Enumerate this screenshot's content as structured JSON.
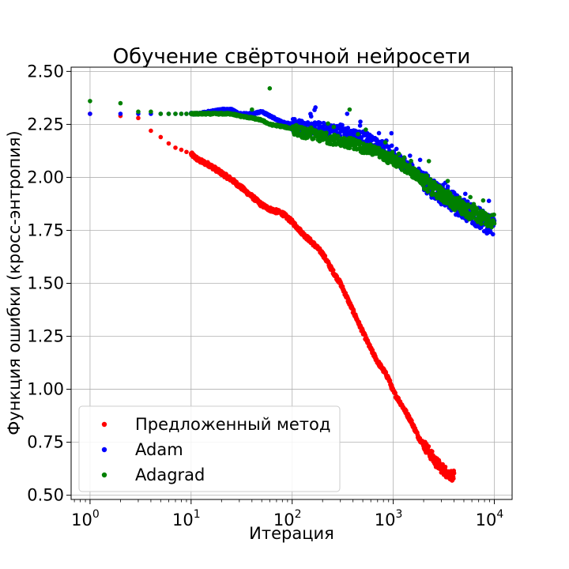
{
  "chart_data": {
    "type": "scatter",
    "title": "Обучение свёрточной нейросети",
    "xlabel": "Итерация",
    "ylabel": "Функция ошибки (кросс-энтропия)",
    "x_scale": "log",
    "xlim": [
      0.65,
      15000
    ],
    "ylim": [
      0.48,
      2.52
    ],
    "x_ticks": [
      {
        "value": 1,
        "label": "10",
        "exp": "0"
      },
      {
        "value": 10,
        "label": "10",
        "exp": "1"
      },
      {
        "value": 100,
        "label": "10",
        "exp": "2"
      },
      {
        "value": 1000,
        "label": "10",
        "exp": "3"
      },
      {
        "value": 10000,
        "label": "10",
        "exp": "4"
      }
    ],
    "y_ticks": [
      {
        "value": 0.5,
        "label": "0.50"
      },
      {
        "value": 0.75,
        "label": "0.75"
      },
      {
        "value": 1.0,
        "label": "1.00"
      },
      {
        "value": 1.25,
        "label": "1.25"
      },
      {
        "value": 1.5,
        "label": "1.50"
      },
      {
        "value": 1.75,
        "label": "1.75"
      },
      {
        "value": 2.0,
        "label": "2.00"
      },
      {
        "value": 2.25,
        "label": "2.25"
      },
      {
        "value": 2.5,
        "label": "2.50"
      }
    ],
    "grid": true,
    "legend_position": "lower-left",
    "series": [
      {
        "name": "Предложенный метод",
        "color": "#ff0000",
        "x": [
          1,
          2,
          3,
          4,
          5,
          6,
          7,
          8,
          9,
          10,
          12,
          15,
          20,
          25,
          30,
          40,
          50,
          60,
          80,
          100,
          130,
          160,
          200,
          250,
          300,
          400,
          500,
          600,
          700,
          800,
          900,
          1000,
          1200,
          1500,
          1800,
          2000,
          2300,
          2600,
          3000,
          3500,
          4000
        ],
        "y": [
          2.3,
          2.29,
          2.28,
          2.22,
          2.19,
          2.16,
          2.14,
          2.13,
          2.12,
          2.11,
          2.08,
          2.06,
          2.02,
          1.99,
          1.96,
          1.91,
          1.87,
          1.85,
          1.83,
          1.79,
          1.73,
          1.69,
          1.64,
          1.56,
          1.5,
          1.37,
          1.27,
          1.19,
          1.13,
          1.09,
          1.05,
          0.99,
          0.93,
          0.85,
          0.77,
          0.74,
          0.7,
          0.66,
          0.63,
          0.6,
          0.59
        ]
      },
      {
        "name": "Adam",
        "color": "#0000ff",
        "x": [
          1,
          2,
          3,
          4,
          5,
          6,
          7,
          8,
          9,
          10,
          12,
          15,
          20,
          25,
          30,
          40,
          50,
          60,
          80,
          100,
          130,
          160,
          200,
          250,
          300,
          400,
          500,
          600,
          700,
          800,
          900,
          1000,
          1200,
          1500,
          1800,
          2000,
          2300,
          2600,
          3000,
          3500,
          4000,
          4500,
          5000,
          6000,
          7000,
          8000,
          9000,
          10000
        ],
        "y": [
          2.3,
          2.3,
          2.3,
          2.3,
          2.3,
          2.3,
          2.3,
          2.3,
          2.3,
          2.3,
          2.3,
          2.31,
          2.32,
          2.32,
          2.3,
          2.3,
          2.31,
          2.29,
          2.26,
          2.25,
          2.24,
          2.23,
          2.23,
          2.22,
          2.22,
          2.2,
          2.19,
          2.17,
          2.15,
          2.14,
          2.12,
          2.1,
          2.07,
          2.04,
          2.01,
          1.99,
          1.96,
          1.94,
          1.92,
          1.9,
          1.88,
          1.86,
          1.85,
          1.83,
          1.81,
          1.79,
          1.78,
          1.77
        ]
      },
      {
        "name": "Adagrad",
        "color": "#008000",
        "x": [
          1,
          2,
          3,
          4,
          5,
          6,
          7,
          8,
          9,
          10,
          12,
          15,
          20,
          25,
          30,
          40,
          50,
          60,
          80,
          100,
          130,
          160,
          200,
          250,
          300,
          400,
          500,
          600,
          700,
          800,
          900,
          1000,
          1200,
          1500,
          1800,
          2000,
          2300,
          2600,
          3000,
          3500,
          4000,
          4500,
          5000,
          6000,
          7000,
          8000,
          9000,
          10000
        ],
        "y": [
          2.36,
          2.35,
          2.31,
          2.31,
          2.3,
          2.3,
          2.3,
          2.3,
          2.3,
          2.3,
          2.3,
          2.3,
          2.3,
          2.3,
          2.29,
          2.28,
          2.27,
          2.25,
          2.24,
          2.23,
          2.21,
          2.2,
          2.19,
          2.18,
          2.17,
          2.16,
          2.14,
          2.13,
          2.12,
          2.1,
          2.09,
          2.08,
          2.06,
          2.03,
          2.0,
          1.98,
          1.96,
          1.94,
          1.92,
          1.9,
          1.88,
          1.87,
          1.85,
          1.83,
          1.82,
          1.81,
          1.8,
          1.79
        ]
      }
    ],
    "outliers": [
      {
        "series": "Adagrad",
        "x": 60,
        "y": 2.42
      },
      {
        "series": "Adagrad",
        "x": 40,
        "y": 2.32
      },
      {
        "series": "Adagrad",
        "x": 370,
        "y": 2.32
      },
      {
        "series": "Adam",
        "x": 170,
        "y": 2.33
      },
      {
        "series": "Adam",
        "x": 350,
        "y": 2.3
      }
    ]
  }
}
